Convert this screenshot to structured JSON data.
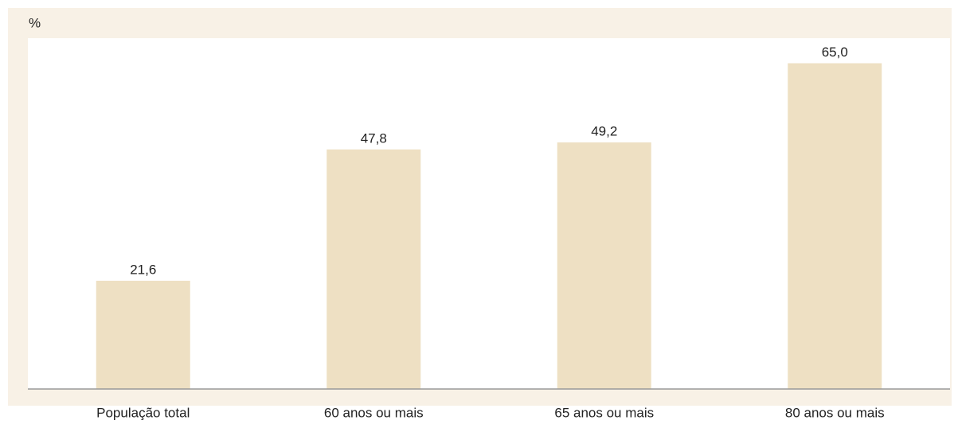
{
  "chart_data": {
    "type": "bar",
    "y_label": "%",
    "categories": [
      "População total",
      "60 anos ou mais",
      "65 anos ou mais",
      "80 anos ou mais"
    ],
    "values": [
      21.6,
      47.8,
      49.2,
      65.0
    ],
    "value_labels": [
      "21,6",
      "47,8",
      "49,2",
      "65,0"
    ],
    "color": "#eee0c3",
    "ylim": [
      0,
      70
    ]
  }
}
